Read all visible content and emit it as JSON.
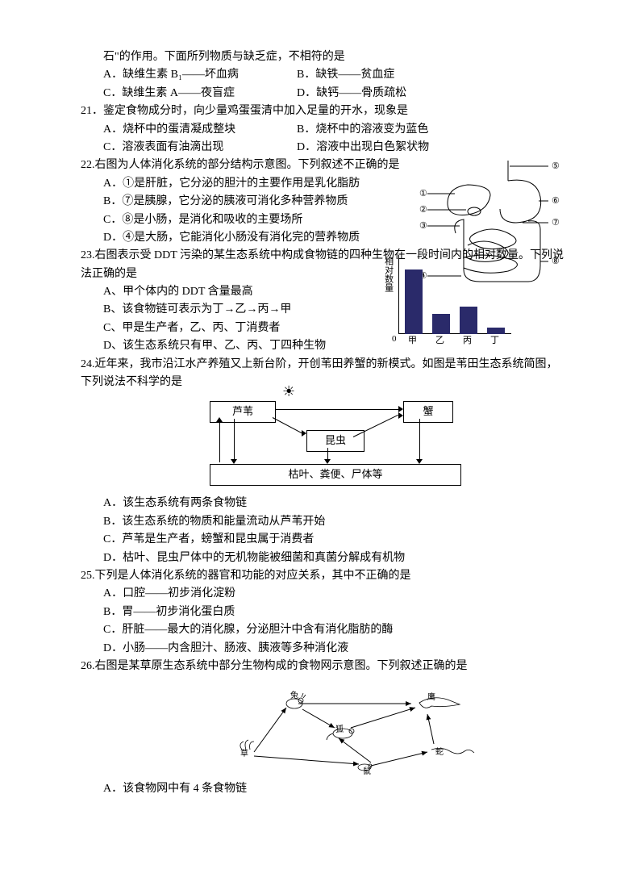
{
  "q20": {
    "cont": "石\"的作用。下面所列物质与缺乏症，不相符的是",
    "A": "A．缺维生素 B₁——坏血病",
    "B": "B．缺铁——贫血症",
    "C": "C．缺维生素 A——夜盲症",
    "D": "D．缺钙——骨质疏松"
  },
  "q21": {
    "stem": "21．鉴定食物成分时，向少量鸡蛋蛋清中加入足量的开水，现象是",
    "A": "A．烧杯中的蛋清凝成整块",
    "B": "B．烧杯中的溶液变为蓝色",
    "C": "C．溶液表面有油滴出现",
    "D": "D．溶液中出现白色絮状物"
  },
  "q22": {
    "stem": "22.右图为人体消化系统的部分结构示意图。下列叙述不正确的是",
    "A": "A．①是肝脏，它分泌的胆汁的主要作用是乳化脂肪",
    "B": "B．⑦是胰腺，它分泌的胰液可消化多种营养物质",
    "C": "C．⑧是小肠，是消化和吸收的主要场所",
    "D": "D．④是大肠，它能消化小肠没有消化完的营养物质",
    "diagram": {
      "labels": [
        "①",
        "②",
        "③",
        "④",
        "⑤",
        "⑥",
        "⑦",
        "⑧"
      ],
      "stroke": "#000000"
    }
  },
  "q23": {
    "stem": "23.右图表示受 DDT 污染的某生态系统中构成食物链的四种生物在一段时间内的相对数量。下列说法正确的是",
    "A": "A、甲个体内的 DDT 含量最高",
    "B": "B、该食物链可表示为丁→乙→丙→甲",
    "C": "C、甲是生产者，乙、丙、丁消费者",
    "D": "D、该生态系统只有甲、乙、丙、丁四种生物",
    "chart": {
      "ylabel": "相对数量",
      "categories": [
        "甲",
        "乙",
        "丙",
        "丁"
      ],
      "values": [
        95,
        30,
        40,
        10
      ],
      "bar_color": "#2a2a6a",
      "axis_color": "#000000",
      "background": "#ffffff",
      "ylim": [
        0,
        100
      ]
    }
  },
  "q24": {
    "stem": "24.近年来，我市沿江水产养殖又上新台阶，开创苇田养蟹的新模式。如图是苇田生态系统简图，下列说法不科学的是",
    "A": "A．该生态系统有两条食物链",
    "B": "B．该生态系统的物质和能量流动从芦苇开始",
    "C": "C．芦苇是生产者，螃蟹和昆虫属于消费者",
    "D": "D．枯叶、昆虫尸体中的无机物能被细菌和真菌分解成有机物",
    "flow": {
      "sun": "☀",
      "nodes": {
        "reed": "芦苇",
        "crab": "蟹",
        "insect": "昆虫",
        "detritus": "枯叶、粪便、尸体等"
      },
      "box_border": "#000000",
      "box_bg": "#ffffff"
    }
  },
  "q25": {
    "stem": "25.下列是人体消化系统的器官和功能的对应关系，其中不正确的是",
    "A": "A．口腔——初步消化淀粉",
    "B": "B．胃——初步消化蛋白质",
    "C": "C．肝脏——最大的消化腺，分泌胆汁中含有消化脂肪的酶",
    "D": "D．小肠——内含胆汁、肠液、胰液等多种消化液"
  },
  "q26": {
    "stem": "26.右图是某草原生态系统中部分生物构成的食物网示意图。下列叙述正确的是",
    "A": "A．该食物网中有 4 条食物链",
    "web": {
      "organisms": [
        "草",
        "兔",
        "狐",
        "鹰",
        "鼠",
        "蛇"
      ],
      "stroke": "#000000"
    }
  }
}
